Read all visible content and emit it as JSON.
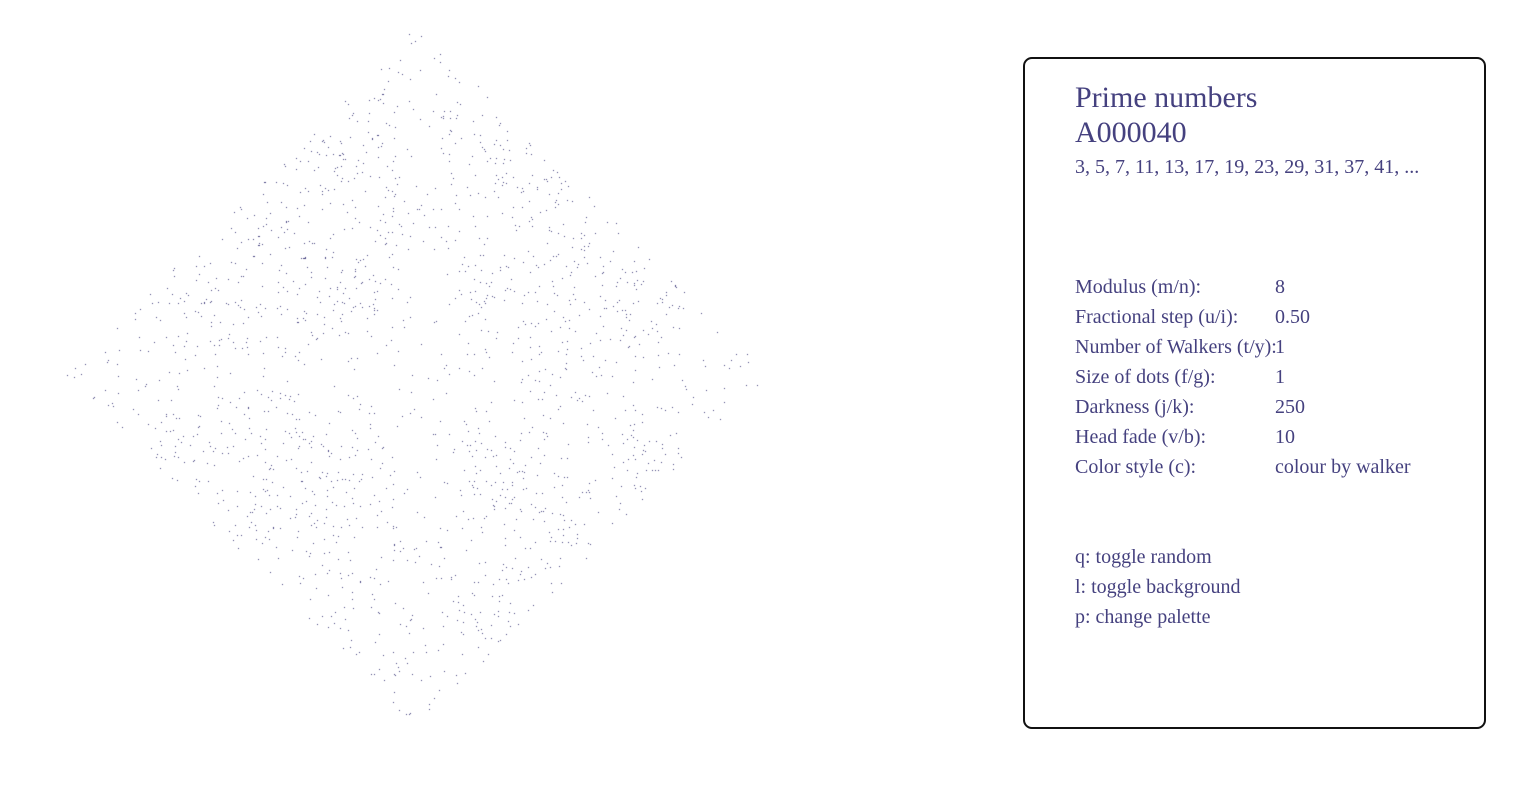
{
  "sequence": {
    "name": "Prime numbers",
    "id": "A000040",
    "terms": "3, 5, 7, 11, 13, 17, 19, 23, 29, 31, 37, 41, ..."
  },
  "settings": [
    {
      "label": "Modulus (m/n):",
      "value": "8"
    },
    {
      "label": "Fractional step (u/i):",
      "value": "0.50"
    },
    {
      "label": "Number of Walkers (t/y):",
      "value": "1"
    },
    {
      "label": "Size of dots (f/g):",
      "value": "1"
    },
    {
      "label": "Darkness (j/k):",
      "value": "250"
    },
    {
      "label": "Head fade (v/b):",
      "value": "10"
    },
    {
      "label": "Color style (c):",
      "value": "colour by walker"
    }
  ],
  "hotkeys": [
    {
      "label": "q: toggle random"
    },
    {
      "label": "l: toggle background"
    },
    {
      "label": "p: change palette"
    }
  ],
  "colors": {
    "dot": "#45417f",
    "text": "#45417f",
    "panel_border": "#111111",
    "background": "#ffffff"
  }
}
